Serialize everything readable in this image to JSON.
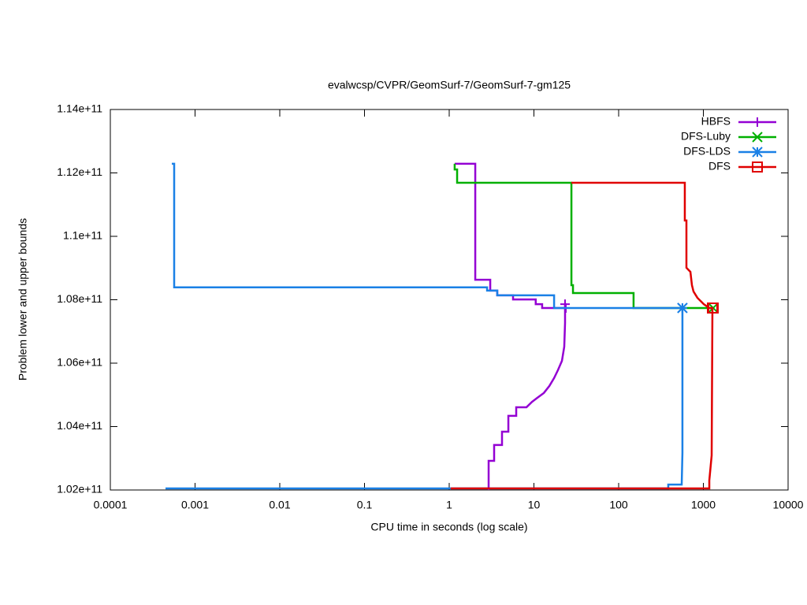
{
  "chart_data": {
    "type": "line",
    "title": "evalwcsp/CVPR/GeomSurf-7/GeomSurf-7-gm125",
    "x_label": "CPU time in seconds (log scale)",
    "y_label": "Problem lower and upper bounds",
    "xlog": true,
    "legend": "top-right",
    "xlim": [
      0.0001,
      10000
    ],
    "xticks": [
      0.0001,
      0.001,
      0.01,
      0.1,
      1,
      10,
      100,
      1000,
      10000
    ],
    "ylim": [
      102000000000.0,
      114000000000.0
    ],
    "yticks": [
      {
        "value": 102000000000.0,
        "label": "1.02e+11"
      },
      {
        "value": 104000000000.0,
        "label": "1.04e+11"
      },
      {
        "value": 106000000000.0,
        "label": "1.06e+11"
      },
      {
        "value": 108000000000.0,
        "label": "1.08e+11"
      },
      {
        "value": 110000000000.0,
        "label": "1.1e+11"
      },
      {
        "value": 112000000000.0,
        "label": "1.12e+11"
      },
      {
        "value": 114000000000.0,
        "label": "1.14e+11"
      }
    ],
    "series": [
      {
        "name": "HBFS",
        "color": "#9400d3",
        "marker": "plus",
        "x": [
          1.16,
          2.03,
          2.03,
          3.05,
          3.05,
          3.69,
          3.69,
          5.67,
          5.67,
          10.5,
          10.5,
          12.5,
          12.5,
          23.8,
          null,
          2.92,
          2.92,
          3.39,
          3.39,
          4.2,
          4.2,
          4.99,
          4.99,
          6.18,
          6.18,
          8.17,
          9.5,
          11.0,
          13.1,
          15.2,
          17.3,
          19.2,
          21.4,
          22.8,
          23.3,
          23.3
        ],
        "values": [
          112290000000.0,
          112290000000.0,
          108630000000.0,
          108630000000.0,
          108290000000.0,
          108290000000.0,
          108140000000.0,
          108140000000.0,
          108010000000.0,
          108010000000.0,
          107860000000.0,
          107860000000.0,
          107740000000.0,
          107740000000.0,
          null,
          102000000000.0,
          102920000000.0,
          102920000000.0,
          103420000000.0,
          103420000000.0,
          103840000000.0,
          103840000000.0,
          104340000000.0,
          104340000000.0,
          104610000000.0,
          104610000000.0,
          104780000000.0,
          104910000000.0,
          105060000000.0,
          105280000000.0,
          105530000000.0,
          105780000000.0,
          106070000000.0,
          106520000000.0,
          107270000000.0,
          107860000000.0
        ]
      },
      {
        "name": "DFS-Luby",
        "color": "#00b000",
        "marker": "cross",
        "x": [
          1.16,
          1.16,
          1.24,
          1.24,
          27.7,
          27.7,
          28.9,
          28.9,
          150,
          150,
          1306
        ],
        "values": [
          112290000000.0,
          112110000000.0,
          112110000000.0,
          111690000000.0,
          111690000000.0,
          108460000000.0,
          108460000000.0,
          108210000000.0,
          108210000000.0,
          107740000000.0,
          107740000000.0
        ]
      },
      {
        "name": "DFS-LDS",
        "color": "#1a80e6",
        "marker": "star",
        "x": [
          0.000532,
          0.000567,
          0.000567,
          2.8,
          2.8,
          3.69,
          3.69,
          17.3,
          17.3,
          566,
          null,
          0.000448,
          385,
          385,
          555,
          566,
          566
        ],
        "values": [
          112290000000.0,
          112290000000.0,
          108390000000.0,
          108390000000.0,
          108290000000.0,
          108290000000.0,
          108140000000.0,
          108140000000.0,
          107740000000.0,
          107740000000.0,
          null,
          102050000000.0,
          102050000000.0,
          102170000000.0,
          102170000000.0,
          103170000000.0,
          107740000000.0
        ]
      },
      {
        "name": "DFS",
        "color": "#e00000",
        "marker": "square",
        "x": [
          27.7,
          604,
          604,
          631,
          631,
          703,
          733,
          765,
          851,
          1012,
          1175,
          1306,
          null,
          1.04,
          1175,
          1175,
          1253,
          1279
        ],
        "values": [
          111690000000.0,
          111690000000.0,
          110500000000.0,
          110500000000.0,
          109010000000.0,
          108880000000.0,
          108460000000.0,
          108260000000.0,
          108060000000.0,
          107860000000.0,
          107740000000.0,
          107740000000.0,
          null,
          102050000000.0,
          102050000000.0,
          102300000000.0,
          103090000000.0,
          107740000000.0
        ]
      }
    ]
  }
}
